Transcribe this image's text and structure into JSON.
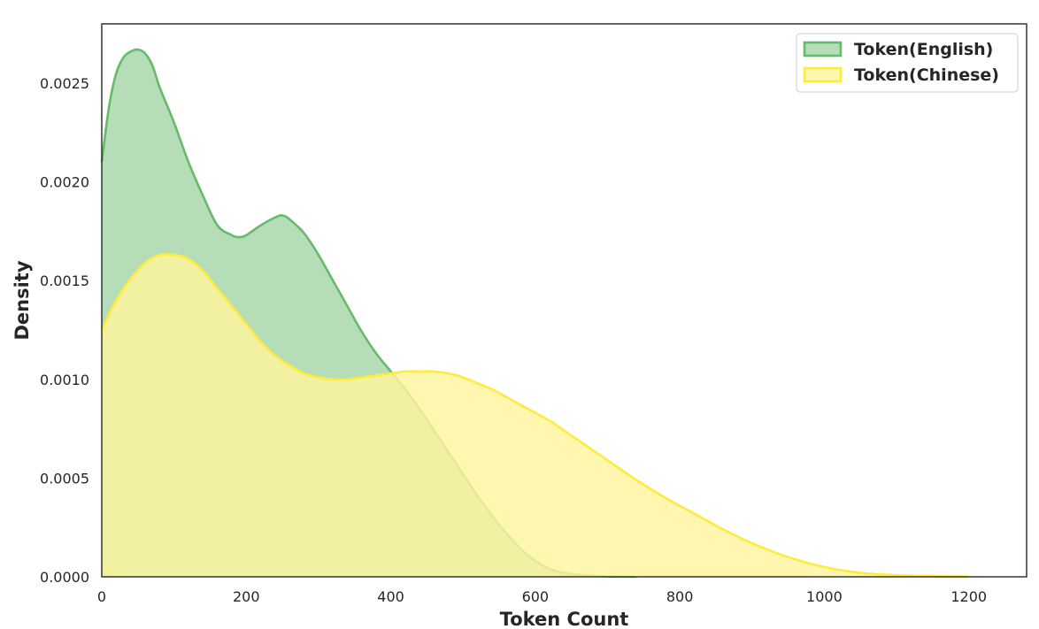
{
  "chart_data": {
    "type": "area",
    "title": "",
    "xlabel": "Token Count",
    "ylabel": "Density",
    "xlim": [
      0,
      1280
    ],
    "ylim": [
      0,
      0.0028
    ],
    "x_ticks": [
      0,
      200,
      400,
      600,
      800,
      1000,
      1200
    ],
    "x_tick_labels": [
      "0",
      "200",
      "400",
      "600",
      "800",
      "1000",
      "1200"
    ],
    "y_ticks": [
      0,
      0.0005,
      0.001,
      0.0015,
      0.002,
      0.0025
    ],
    "y_tick_labels": [
      "0.0000",
      "0.0005",
      "0.0010",
      "0.0015",
      "0.0020",
      "0.0025"
    ],
    "grid": false,
    "legend_position": "top-right",
    "series": [
      {
        "name": "Token(English)",
        "line_color": "#66bb6a",
        "fill_color": "#a5d6a7",
        "x": [
          0,
          10,
          20,
          30,
          40,
          50,
          60,
          70,
          80,
          100,
          120,
          140,
          160,
          180,
          190,
          200,
          220,
          240,
          250,
          260,
          280,
          300,
          320,
          340,
          360,
          380,
          400,
          420,
          440,
          460,
          480,
          500,
          520,
          540,
          560,
          580,
          600,
          620,
          640,
          660,
          680,
          700,
          720,
          740
        ],
        "y": [
          0.0021,
          0.00238,
          0.00255,
          0.00263,
          0.00266,
          0.00267,
          0.00265,
          0.00259,
          0.00248,
          0.0023,
          0.0021,
          0.00193,
          0.00178,
          0.00173,
          0.00172,
          0.00173,
          0.00178,
          0.00182,
          0.00183,
          0.00181,
          0.00174,
          0.00163,
          0.0015,
          0.00137,
          0.00124,
          0.00113,
          0.00104,
          0.00095,
          0.00085,
          0.00074,
          0.00063,
          0.00052,
          0.00041,
          0.00031,
          0.00022,
          0.00014,
          8e-05,
          4e-05,
          2e-05,
          1e-05,
          5e-06,
          2e-06,
          1e-06,
          0
        ]
      },
      {
        "name": "Token(Chinese)",
        "line_color": "#ffeb3b",
        "fill_color": "#fff59d",
        "x": [
          0,
          20,
          40,
          60,
          80,
          100,
          120,
          140,
          160,
          180,
          200,
          220,
          240,
          260,
          280,
          300,
          320,
          340,
          360,
          380,
          400,
          420,
          440,
          460,
          480,
          500,
          520,
          540,
          560,
          580,
          600,
          620,
          640,
          660,
          680,
          700,
          740,
          780,
          820,
          860,
          900,
          950,
          1000,
          1050,
          1100,
          1150,
          1200
        ],
        "y": [
          0.00125,
          0.0014,
          0.00151,
          0.00159,
          0.00163,
          0.00163,
          0.00161,
          0.00155,
          0.00146,
          0.00137,
          0.00128,
          0.00119,
          0.00112,
          0.00107,
          0.00103,
          0.00101,
          0.001,
          0.001,
          0.00101,
          0.00102,
          0.00103,
          0.00104,
          0.00104,
          0.00104,
          0.00103,
          0.00101,
          0.00098,
          0.00095,
          0.00091,
          0.00087,
          0.00083,
          0.00079,
          0.00074,
          0.00069,
          0.00064,
          0.00059,
          0.00049,
          0.0004,
          0.00032,
          0.00024,
          0.00017,
          0.0001,
          5e-05,
          2e-05,
          8e-06,
          3e-06,
          1e-06
        ]
      }
    ]
  }
}
